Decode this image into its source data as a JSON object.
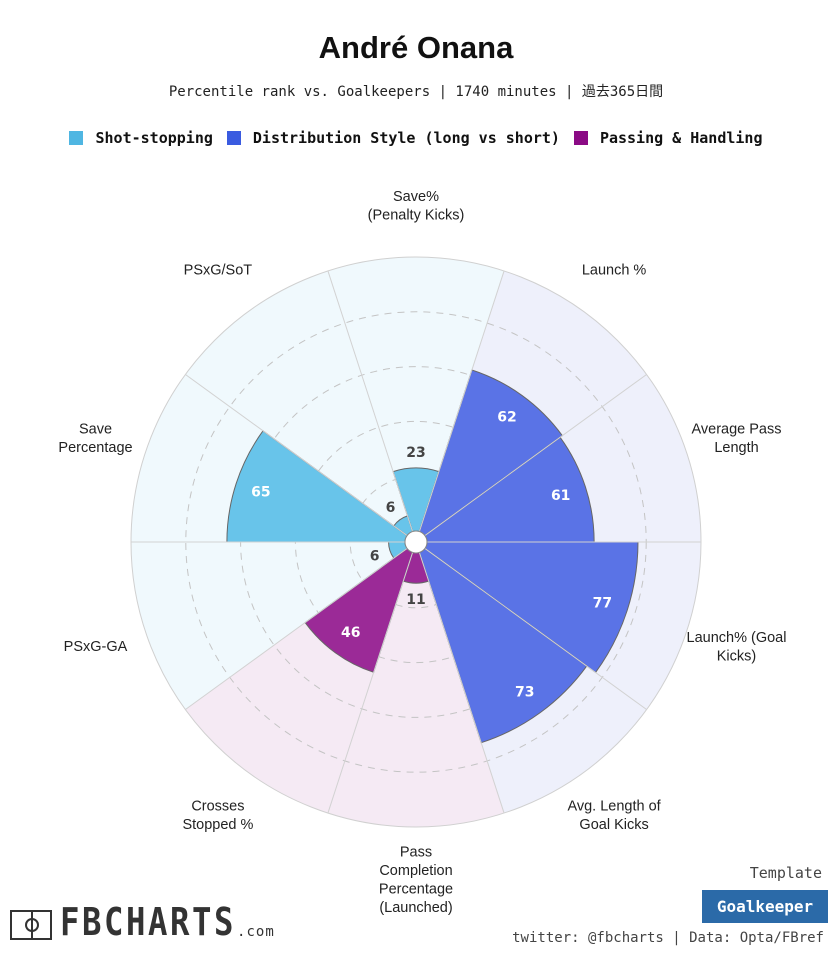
{
  "header": {
    "title": "André Onana",
    "subtitle": "Percentile rank vs. Goalkeepers | 1740 minutes | 過去365日間"
  },
  "legend": [
    {
      "label": "Shot-stopping",
      "color": "#4fb6e2"
    },
    {
      "label": "Distribution Style (long vs short)",
      "color": "#3a5be0"
    },
    {
      "label": "Passing & Handling",
      "color": "#8b0a85"
    }
  ],
  "chart_data": {
    "type": "polar-bar",
    "title": "André Onana",
    "subtitle": "Percentile rank vs. Goalkeepers | 1740 minutes | 過去365日間",
    "range": [
      0,
      100
    ],
    "gridlines": [
      20,
      40,
      60,
      80
    ],
    "categories": [
      {
        "label": "Save%\n(Penalty Kicks)",
        "value": 23,
        "group": 0
      },
      {
        "label": "Launch %",
        "value": 62,
        "group": 1
      },
      {
        "label": "Average Pass\nLength",
        "value": 61,
        "group": 1
      },
      {
        "label": "Launch% (Goal\nKicks)",
        "value": 77,
        "group": 1
      },
      {
        "label": "Avg. Length of\nGoal Kicks",
        "value": 73,
        "group": 1
      },
      {
        "label": "Pass\nCompletion\nPercentage\n(Launched)",
        "value": 11,
        "group": 2
      },
      {
        "label": "Crosses\nStopped %",
        "value": 46,
        "group": 2
      },
      {
        "label": "PSxG-GA",
        "value": 6,
        "group": 0
      },
      {
        "label": "Save\nPercentage",
        "value": 65,
        "group": 0
      },
      {
        "label": "PSxG/SoT",
        "value": 6,
        "group": 0
      }
    ],
    "group_colors": {
      "bar": [
        "#68c4ea",
        "#5a73e6",
        "#9b2a97"
      ],
      "background": [
        "#f0f9fd",
        "#eef0fb",
        "#f5eaf4"
      ]
    }
  },
  "footer": {
    "logo_text": "FBCHARTS",
    "logo_suffix": ".com",
    "template_label": "Template",
    "template_name": "Goalkeeper",
    "credits": "twitter: @fbcharts | Data: Opta/FBref"
  }
}
